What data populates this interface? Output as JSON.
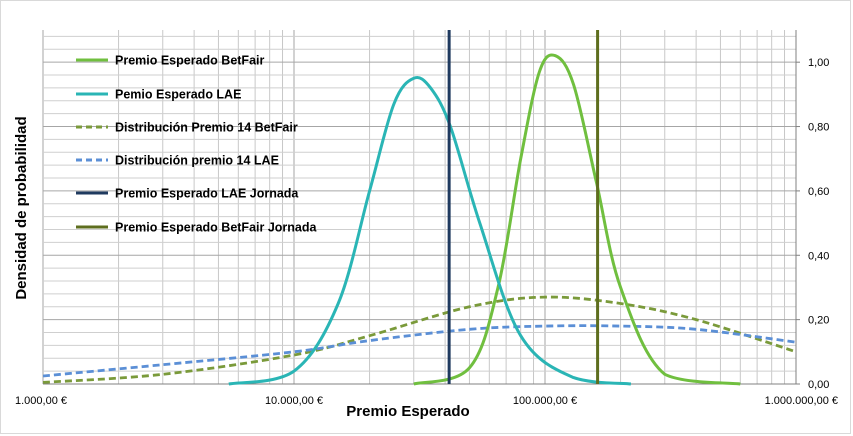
{
  "chart_data": {
    "type": "line",
    "xlabel": "Premio Esperado",
    "ylabel": "Densidad de probabilidad",
    "x_scale": "log",
    "xlim": [
      1000,
      1000000
    ],
    "ylim": [
      0,
      1.1
    ],
    "x_ticks": [
      {
        "value": 1000,
        "label": "1.000,00 €"
      },
      {
        "value": 10000,
        "label": "10.000,00 €"
      },
      {
        "value": 100000,
        "label": "100.000,00 €"
      },
      {
        "value": 1000000,
        "label": "1.000.000,00 €"
      }
    ],
    "y_ticks": [
      {
        "value": 0,
        "label": "0,00"
      },
      {
        "value": 0.2,
        "label": "0,20"
      },
      {
        "value": 0.4,
        "label": "0,40"
      },
      {
        "value": 0.6,
        "label": "0,60"
      },
      {
        "value": 0.8,
        "label": "0,80"
      },
      {
        "value": 1.0,
        "label": "1,00"
      }
    ],
    "grid": true,
    "legend_position": "top-left",
    "series": [
      {
        "name": "Premio Esperado BetFair",
        "color": "#70bf3f",
        "style": "solid",
        "x": [
          30000,
          50000,
          65000,
          80000,
          95000,
          110000,
          130000,
          160000,
          200000,
          300000,
          600000
        ],
        "y": [
          0.0,
          0.05,
          0.3,
          0.7,
          0.97,
          1.02,
          0.93,
          0.63,
          0.3,
          0.03,
          0.0
        ]
      },
      {
        "name": "Pemio Esperado LAE",
        "color": "#2ab5b5",
        "style": "solid",
        "x": [
          5500,
          10000,
          15000,
          20000,
          25000,
          30000,
          35000,
          42000,
          55000,
          80000,
          130000,
          220000
        ],
        "y": [
          0.0,
          0.04,
          0.25,
          0.6,
          0.87,
          0.95,
          0.92,
          0.8,
          0.5,
          0.15,
          0.02,
          0.0
        ]
      },
      {
        "name": "Distribución Premio 14 BetFair",
        "color": "#7a9a3a",
        "style": "dashed",
        "x": [
          1000,
          3000,
          10000,
          20000,
          50000,
          100000,
          200000,
          400000,
          1000000
        ],
        "y": [
          0.005,
          0.03,
          0.09,
          0.15,
          0.24,
          0.27,
          0.25,
          0.2,
          0.1
        ]
      },
      {
        "name": "Distribución premio 14 LAE",
        "color": "#5b8fd6",
        "style": "dashed",
        "x": [
          1000,
          3000,
          10000,
          20000,
          50000,
          100000,
          200000,
          400000,
          1000000
        ],
        "y": [
          0.025,
          0.06,
          0.1,
          0.135,
          0.17,
          0.18,
          0.18,
          0.17,
          0.13
        ]
      },
      {
        "name": "Premio Esperado LAE Jornada",
        "color": "#1f3a5f",
        "style": "vertical",
        "x_value": 41500
      },
      {
        "name": "Premio Esperado BetFair Jornada",
        "color": "#5e6e1e",
        "style": "vertical",
        "x_value": 162000
      }
    ]
  }
}
